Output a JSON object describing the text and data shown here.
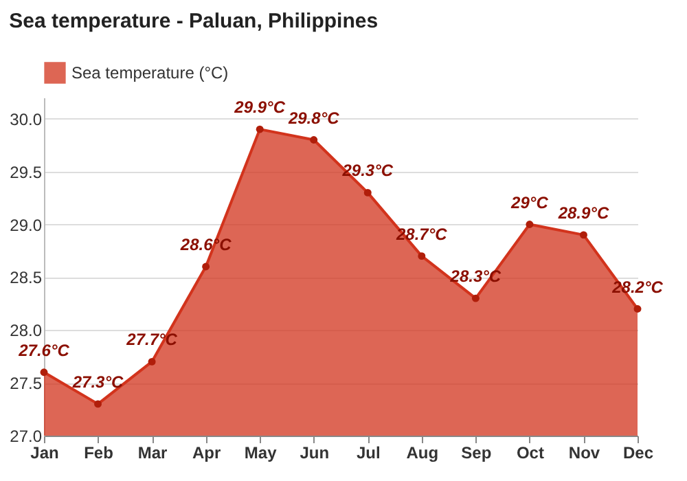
{
  "chart_data": {
    "type": "area",
    "title": "Sea temperature - Paluan, Philippines",
    "categories": [
      "Jan",
      "Feb",
      "Mar",
      "Apr",
      "May",
      "Jun",
      "Jul",
      "Aug",
      "Sep",
      "Oct",
      "Nov",
      "Dec"
    ],
    "series": [
      {
        "name": "Sea temperature (°C)",
        "color": "#d2331c",
        "values": [
          27.6,
          27.3,
          27.7,
          28.6,
          29.9,
          29.8,
          29.3,
          28.7,
          28.3,
          29.0,
          28.9,
          28.2
        ],
        "value_labels": [
          "27.6°C",
          "27.3°C",
          "27.7°C",
          "28.6°C",
          "29.9°C",
          "29.8°C",
          "29.3°C",
          "28.7°C",
          "28.3°C",
          "29°C",
          "28.9°C",
          "28.2°C"
        ]
      }
    ],
    "ylim": [
      27,
      30.2
    ],
    "yticks": [
      {
        "value": 27,
        "label": "27.0"
      },
      {
        "value": 27.5,
        "label": "27.5"
      },
      {
        "value": 28,
        "label": "28.0"
      },
      {
        "value": 28.5,
        "label": "28.5"
      },
      {
        "value": 29,
        "label": "29.0"
      },
      {
        "value": 29.5,
        "label": "29.5"
      },
      {
        "value": 30,
        "label": "30.0"
      }
    ],
    "grid": "y",
    "legend": "top left",
    "marker": "circle",
    "line_style": "solid"
  }
}
